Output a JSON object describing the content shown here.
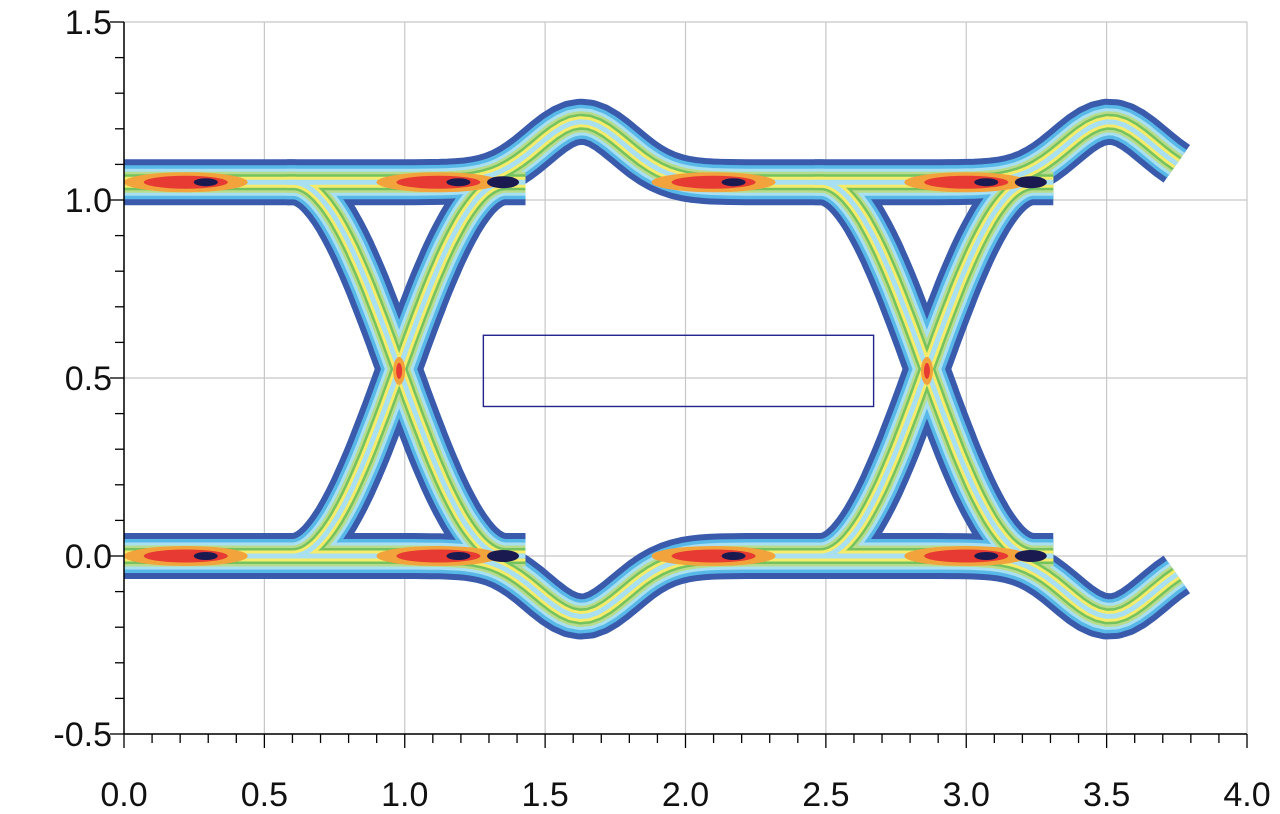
{
  "chart_data": {
    "type": "eye-diagram",
    "title": "",
    "xlabel": "",
    "ylabel": "",
    "xlim": [
      0.0,
      4.0
    ],
    "ylim": [
      -0.5,
      1.5
    ],
    "grid": true,
    "x_ticks": [
      {
        "value": 0.0,
        "label": "0.0"
      },
      {
        "value": 0.5,
        "label": "0.5"
      },
      {
        "value": 1.0,
        "label": "1.0"
      },
      {
        "value": 1.5,
        "label": "1.5"
      },
      {
        "value": 2.0,
        "label": "2.0"
      },
      {
        "value": 2.5,
        "label": "2.5"
      },
      {
        "value": 3.0,
        "label": "3.0"
      },
      {
        "value": 3.5,
        "label": "3.5"
      },
      {
        "value": 4.0,
        "label": "4.0"
      }
    ],
    "y_ticks": [
      {
        "value": -0.5,
        "label": "-0.5"
      },
      {
        "value": 0.0,
        "label": "0.0"
      },
      {
        "value": 0.5,
        "label": "0.5"
      },
      {
        "value": 1.0,
        "label": "1.0"
      },
      {
        "value": 1.5,
        "label": "1.5"
      }
    ],
    "x_minor_step": 0.1,
    "y_minor_step": 0.1,
    "signal_levels": {
      "high": 1.05,
      "low": 0.0
    },
    "crossings": [
      {
        "x": 0.98,
        "y": 0.52
      },
      {
        "x": 2.86,
        "y": 0.52
      }
    ],
    "overshoot_peaks": [
      {
        "x": 1.63,
        "y_high": 1.33,
        "y_low": -0.28
      },
      {
        "x": 3.51,
        "y_high": 1.33,
        "y_low": -0.28
      }
    ],
    "data_span": [
      0.0,
      3.75
    ],
    "eye_mask": {
      "x0": 1.28,
      "x1": 2.67,
      "y0": 0.42,
      "y1": 0.62
    },
    "colors": {
      "outer": "#3a5aac",
      "cyan": "#58b8e8",
      "light_cyan": "#a8e0f2",
      "green": "#74c35e",
      "light_green": "#b9dc8c",
      "yellow": "#f7eb6a",
      "orange": "#f3a33c",
      "red": "#e63a32",
      "core": "#1a1a50",
      "mask": "#23238f",
      "grid": "#c8c8c8"
    }
  }
}
